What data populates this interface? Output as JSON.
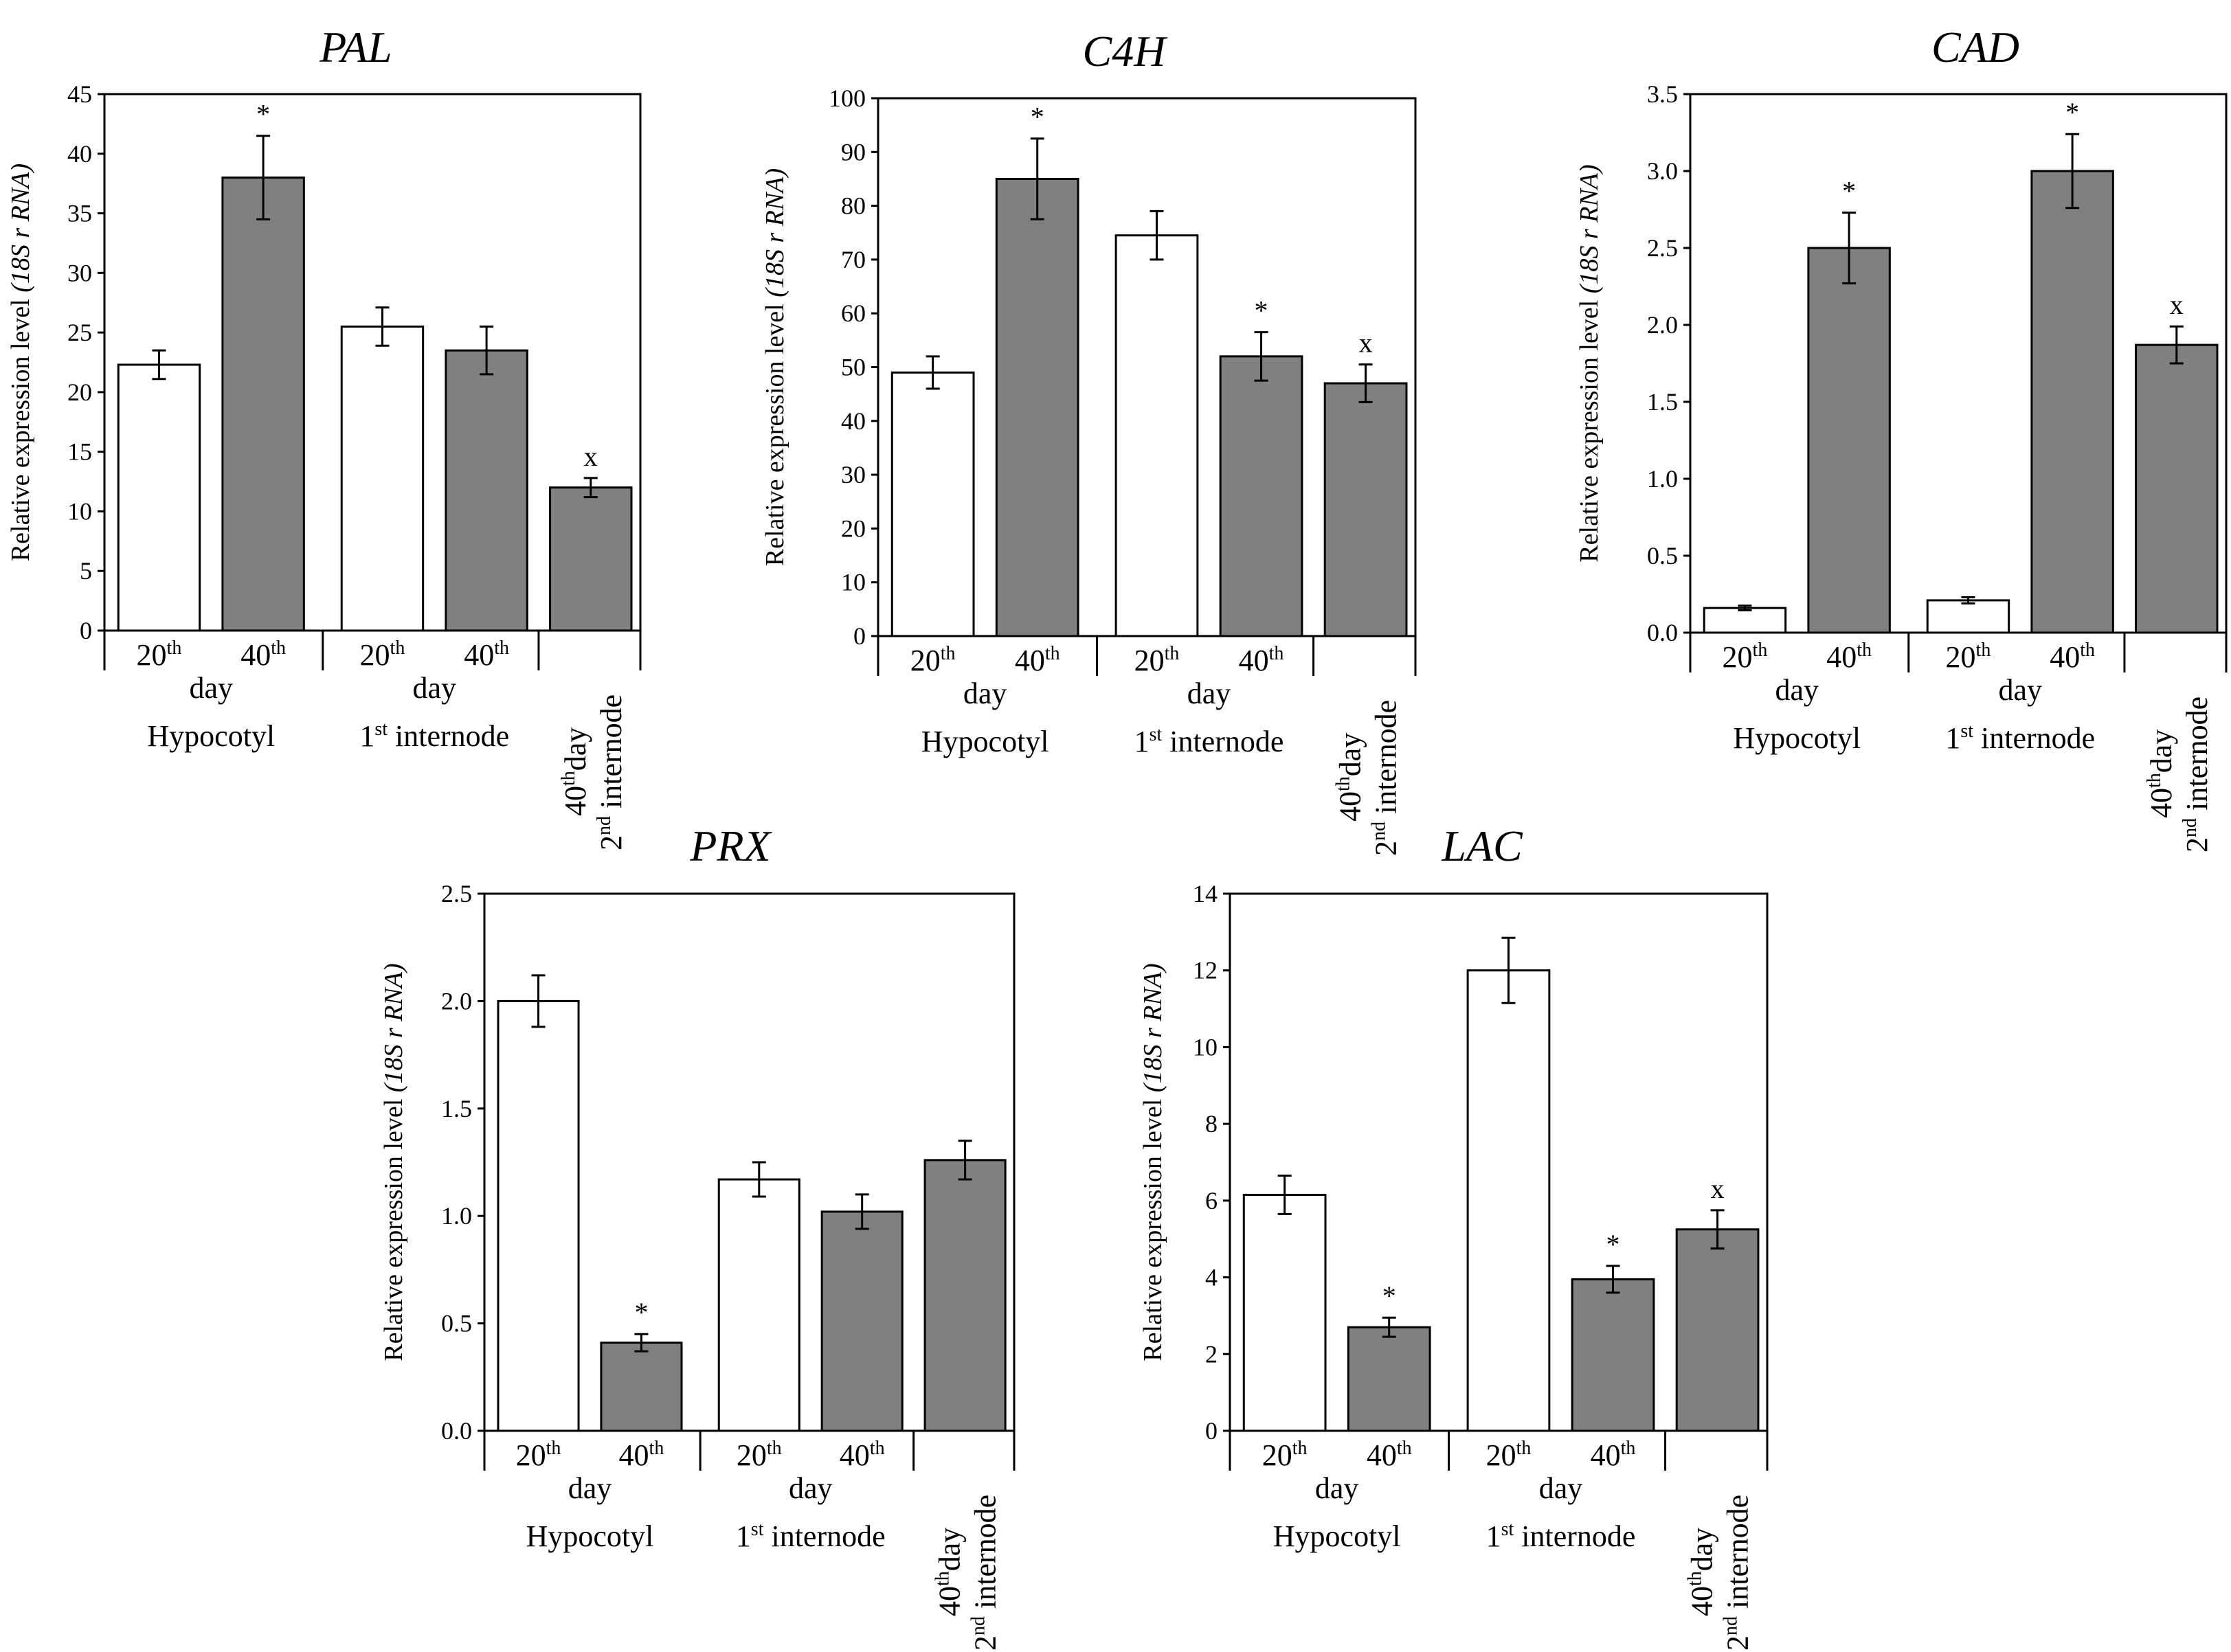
{
  "chart_data": [
    {
      "type": "bar",
      "title": "PAL",
      "ylabel": "Relative expression level",
      "ylabel_italic": "(18S r RNA)",
      "ylim": [
        0,
        45
      ],
      "yticks": [
        "0",
        "5",
        "10",
        "15",
        "20",
        "25",
        "30",
        "35",
        "40",
        "45"
      ],
      "groups": [
        {
          "name": "Hypocotyl",
          "superscript": "",
          "day_label": "day"
        },
        {
          "name": "internode",
          "prefix": "1",
          "superscript": "st",
          "day_label": "day"
        },
        {
          "name": "2nd internode",
          "day_label": "40th day"
        }
      ],
      "day_ticks": [
        {
          "num": "20",
          "sup": "th"
        },
        {
          "num": "40",
          "sup": "th"
        }
      ],
      "series": [
        {
          "name": "20th day",
          "color": "#ffffff",
          "values": [
            22.3,
            25.5,
            null
          ],
          "errors": [
            1.2,
            1.6,
            null
          ]
        },
        {
          "name": "40th day",
          "color": "#808080",
          "values": [
            38.0,
            23.5,
            12.0
          ],
          "errors": [
            3.5,
            2.0,
            0.8
          ]
        }
      ],
      "markers": [
        {
          "bar": "40th day",
          "group": 0,
          "symbol": "*"
        },
        {
          "bar": "40th day",
          "group": 2,
          "symbol": "x"
        }
      ]
    },
    {
      "type": "bar",
      "title": "C4H",
      "ylabel": "Relative expression level",
      "ylabel_italic": "(18S r RNA)",
      "ylim": [
        0,
        100
      ],
      "yticks": [
        "0",
        "10",
        "20",
        "30",
        "40",
        "50",
        "60",
        "70",
        "80",
        "90",
        "100"
      ],
      "series": [
        {
          "name": "20th day",
          "color": "#ffffff",
          "values": [
            49.0,
            74.5,
            null
          ],
          "errors": [
            3.0,
            4.5,
            null
          ]
        },
        {
          "name": "40th day",
          "color": "#808080",
          "values": [
            85.0,
            52.0,
            47.0
          ],
          "errors": [
            7.5,
            4.5,
            3.5
          ]
        }
      ],
      "markers": [
        {
          "bar": "40th day",
          "group": 0,
          "symbol": "*"
        },
        {
          "bar": "40th day",
          "group": 1,
          "symbol": "*"
        },
        {
          "bar": "40th day",
          "group": 2,
          "symbol": "x"
        }
      ]
    },
    {
      "type": "bar",
      "title": "CAD",
      "ylabel": "Relative expression level",
      "ylabel_italic": "(18S r RNA)",
      "ylim": [
        0,
        3.5
      ],
      "yticks": [
        "0.0",
        "0.5",
        "1.0",
        "1.5",
        "2.0",
        "2.5",
        "3.0",
        "3.5"
      ],
      "series": [
        {
          "name": "20th day",
          "color": "#ffffff",
          "values": [
            0.16,
            0.21,
            null
          ],
          "errors": [
            0.015,
            0.02,
            null
          ]
        },
        {
          "name": "40th day",
          "color": "#808080",
          "values": [
            2.5,
            3.0,
            1.87
          ],
          "errors": [
            0.23,
            0.24,
            0.12
          ]
        }
      ],
      "markers": [
        {
          "bar": "40th day",
          "group": 0,
          "symbol": "*"
        },
        {
          "bar": "40th day",
          "group": 1,
          "symbol": "*"
        },
        {
          "bar": "40th day",
          "group": 2,
          "symbol": "x"
        }
      ]
    },
    {
      "type": "bar",
      "title": "PRX",
      "ylabel": "Relative expression level",
      "ylabel_italic": "(18S r RNA)",
      "ylim": [
        0,
        2.5
      ],
      "yticks": [
        "0.0",
        "0.5",
        "1.0",
        "1.5",
        "2.0",
        "2.5"
      ],
      "series": [
        {
          "name": "20th day",
          "color": "#ffffff",
          "values": [
            2.0,
            1.17,
            null
          ],
          "errors": [
            0.12,
            0.08,
            null
          ]
        },
        {
          "name": "40th day",
          "color": "#808080",
          "values": [
            0.41,
            1.02,
            1.26
          ],
          "errors": [
            0.04,
            0.08,
            0.09
          ]
        }
      ],
      "markers": [
        {
          "bar": "40th day",
          "group": 0,
          "symbol": "*"
        }
      ]
    },
    {
      "type": "bar",
      "title": "LAC",
      "ylabel": "Relative expression level",
      "ylabel_italic": "(18S r RNA)",
      "ylim": [
        0,
        14
      ],
      "yticks": [
        "0",
        "2",
        "4",
        "6",
        "8",
        "10",
        "12",
        "14"
      ],
      "series": [
        {
          "name": "20th day",
          "color": "#ffffff",
          "values": [
            6.15,
            12.0,
            null
          ],
          "errors": [
            0.5,
            0.85,
            null
          ]
        },
        {
          "name": "40th day",
          "color": "#808080",
          "values": [
            2.7,
            3.95,
            5.25
          ],
          "errors": [
            0.25,
            0.35,
            0.5
          ]
        }
      ],
      "markers": [
        {
          "bar": "40th day",
          "group": 0,
          "symbol": "*"
        },
        {
          "bar": "40th day",
          "group": 1,
          "symbol": "*"
        },
        {
          "bar": "40th day",
          "group": 2,
          "symbol": "x"
        }
      ]
    }
  ],
  "labels": {
    "day_20": "20",
    "day_40": "40",
    "sup_th": "th",
    "day": "day",
    "hypocotyl": "Hypocotyl",
    "first_num": "1",
    "first_sup": "st",
    "internode": " internode",
    "rot_40": "40",
    "rot_day": "day",
    "rot_2": "2",
    "rot_nd": "nd",
    "rot_internode": " internode"
  }
}
